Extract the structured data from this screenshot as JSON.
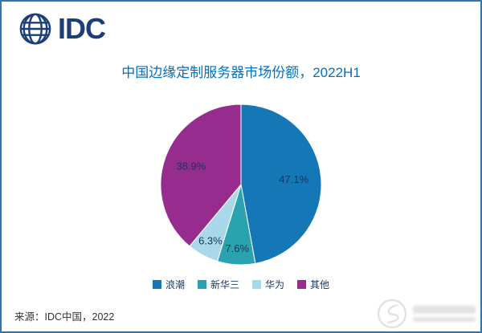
{
  "logo": {
    "text": "IDC"
  },
  "chart_data": {
    "type": "pie",
    "title": "中国边缘定制服务器市场份额，2022H1",
    "categories": [
      "浪潮",
      "新华三",
      "华为",
      "其他"
    ],
    "values": [
      47.1,
      7.6,
      6.3,
      38.9
    ],
    "series": [
      {
        "name": "浪潮",
        "value": 47.1,
        "label": "47.1%",
        "color": "#1577b5"
      },
      {
        "name": "新华三",
        "value": 7.6,
        "label": "7.6%",
        "color": "#2aa2b0"
      },
      {
        "name": "华为",
        "value": 6.3,
        "label": "6.3%",
        "color": "#a9d9e8"
      },
      {
        "name": "其他",
        "value": 38.9,
        "label": "38.9%",
        "color": "#962d8e"
      }
    ],
    "start_angle_deg": 0,
    "direction": "clockwise",
    "legend_position": "bottom"
  },
  "source": "来源：IDC中国，2022",
  "colors": {
    "title": "#0070c0",
    "frame_border": "#2e75b6",
    "logo": "#1c3e78",
    "data_label": "#17365d",
    "legend_text": "#17365d",
    "source_text": "#333333"
  }
}
